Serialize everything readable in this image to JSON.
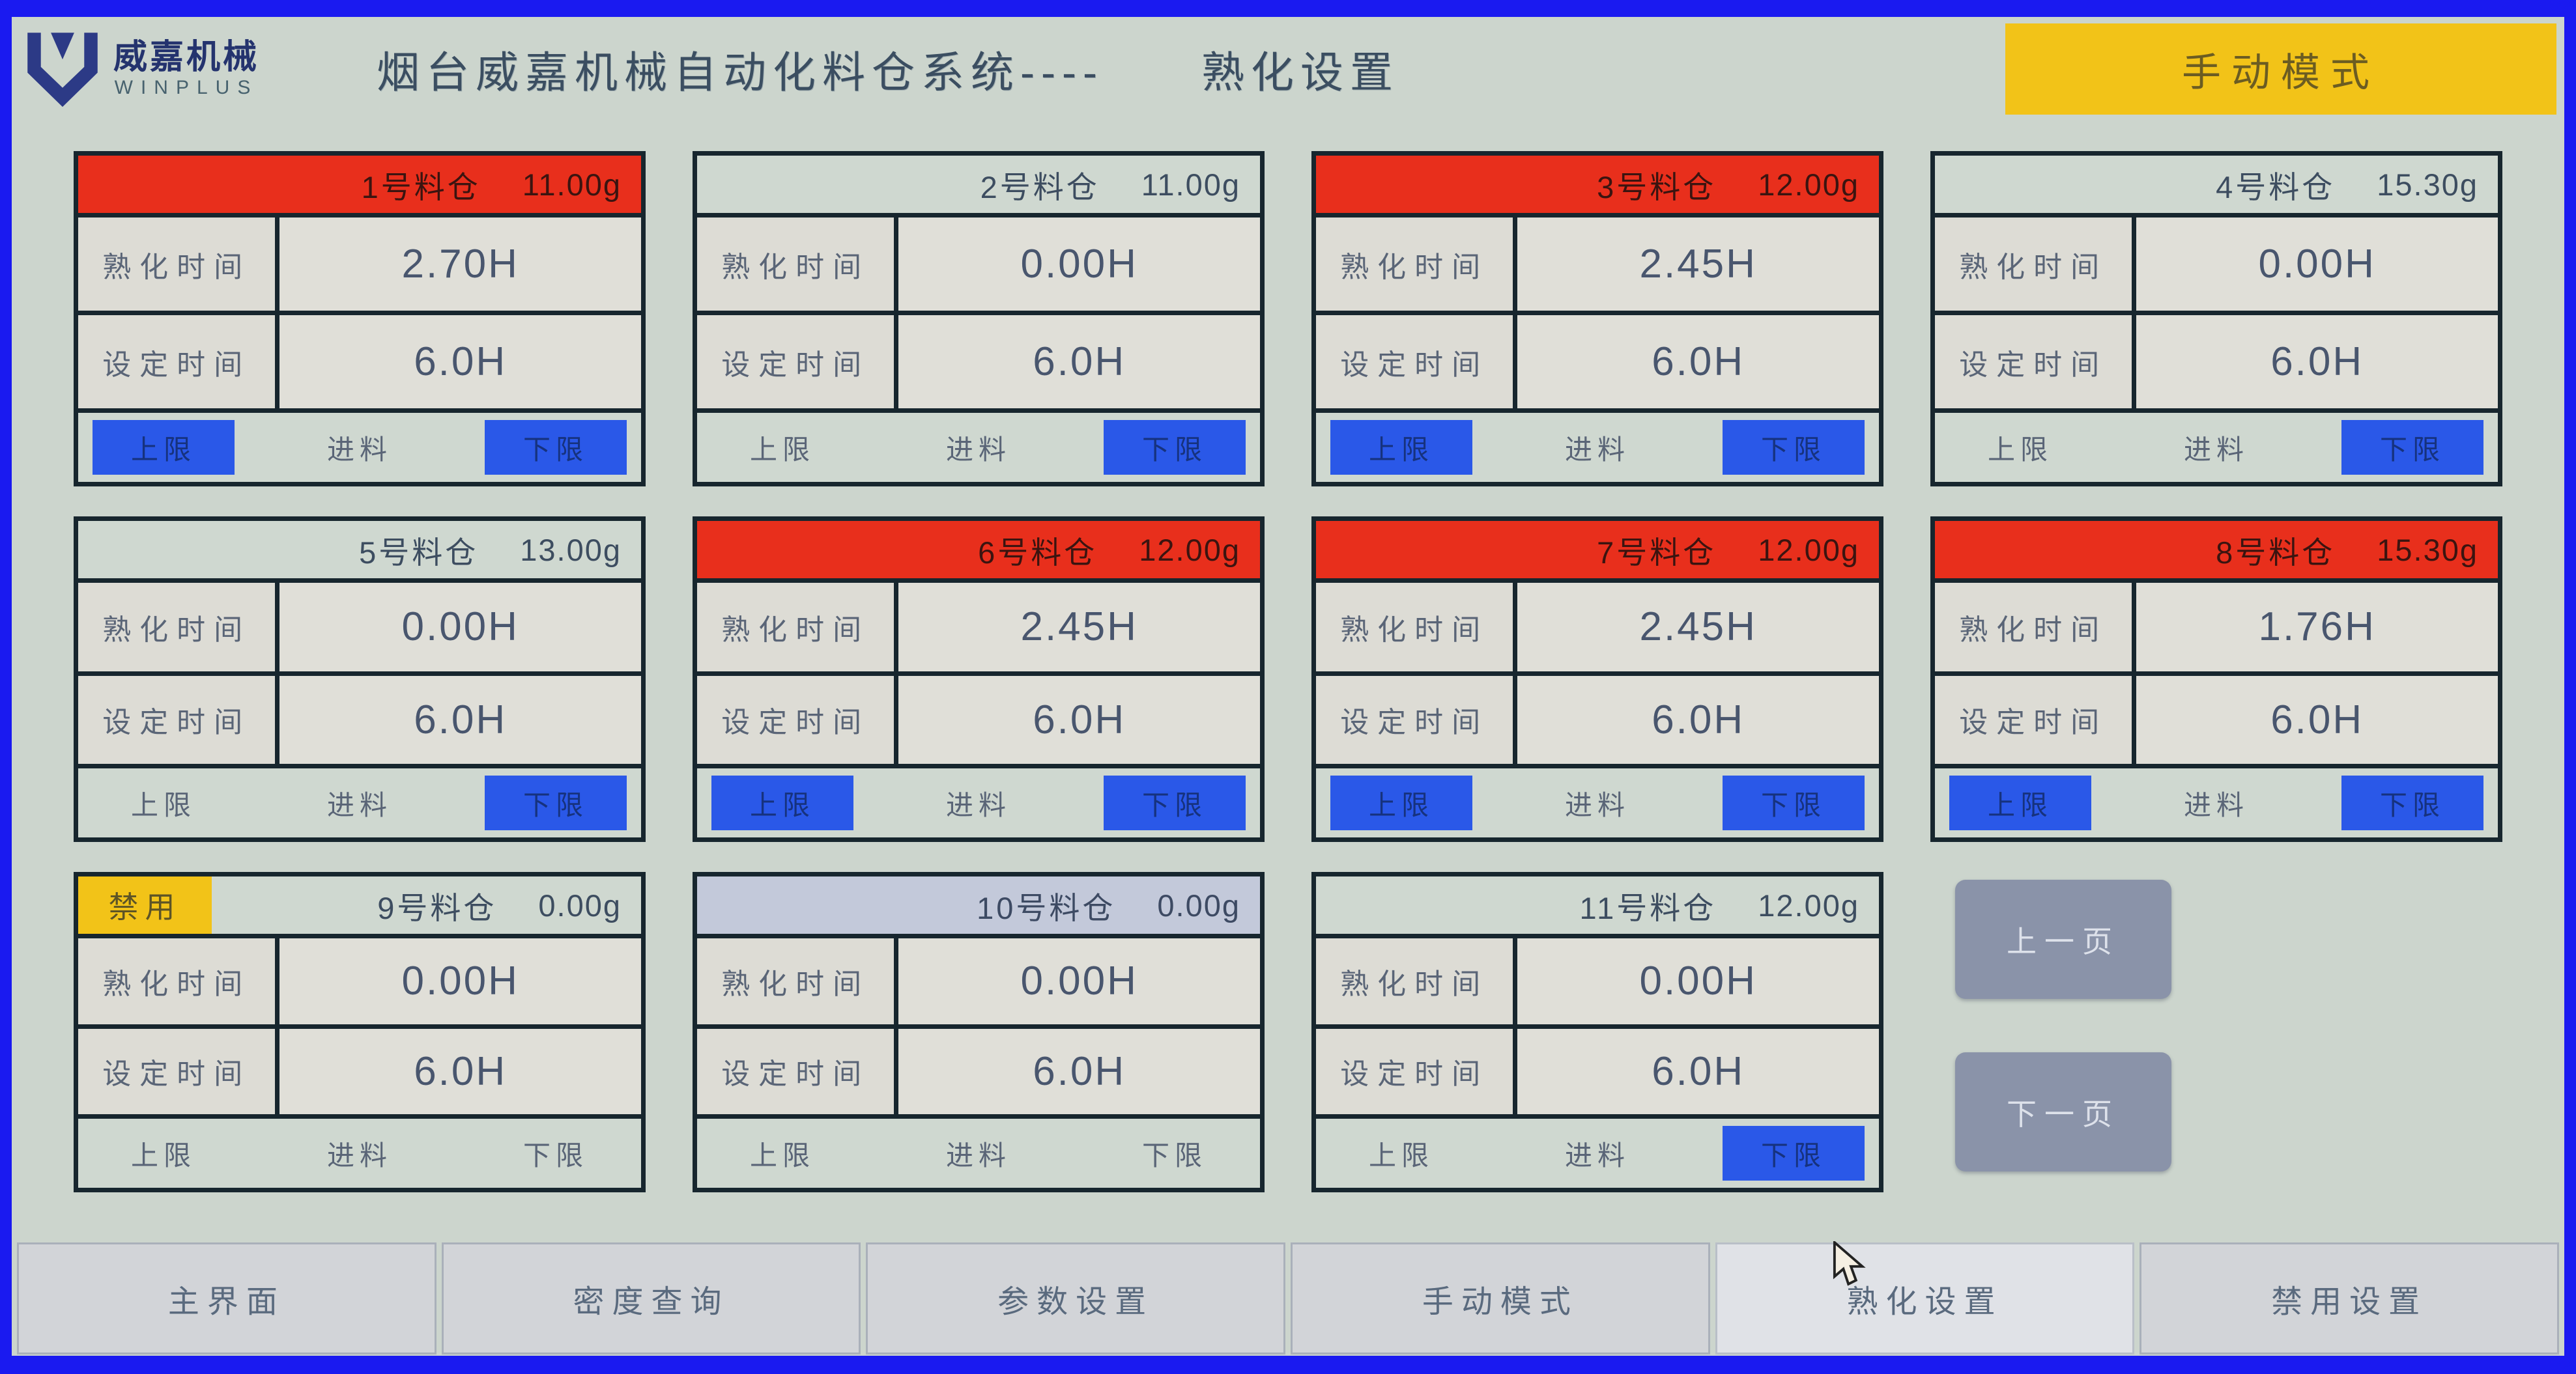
{
  "header": {
    "brand": "威嘉机械",
    "brand_sub": "WINPLUS",
    "title": "烟台威嘉机械自动化料仓系统----",
    "page_title": "熟化设置",
    "mode_badge": "手动模式"
  },
  "labels": {
    "curing_time": "熟化时间",
    "set_time": "设定时间",
    "upper_limit": "上限",
    "feed": "进料",
    "lower_limit": "下限",
    "disabled": "禁用"
  },
  "silos": [
    {
      "name": "1号料仓",
      "weight": "11.00g",
      "curing": "2.70H",
      "set": "6.0H",
      "state": "red",
      "disabled": false,
      "upper": true,
      "feed": false,
      "lower": true
    },
    {
      "name": "2号料仓",
      "weight": "11.00g",
      "curing": "0.00H",
      "set": "6.0H",
      "state": "plain",
      "disabled": false,
      "upper": false,
      "feed": false,
      "lower": true
    },
    {
      "name": "3号料仓",
      "weight": "12.00g",
      "curing": "2.45H",
      "set": "6.0H",
      "state": "red",
      "disabled": false,
      "upper": true,
      "feed": false,
      "lower": true
    },
    {
      "name": "4号料仓",
      "weight": "15.30g",
      "curing": "0.00H",
      "set": "6.0H",
      "state": "plain",
      "disabled": false,
      "upper": false,
      "feed": false,
      "lower": true
    },
    {
      "name": "5号料仓",
      "weight": "13.00g",
      "curing": "0.00H",
      "set": "6.0H",
      "state": "plain",
      "disabled": false,
      "upper": false,
      "feed": false,
      "lower": true
    },
    {
      "name": "6号料仓",
      "weight": "12.00g",
      "curing": "2.45H",
      "set": "6.0H",
      "state": "red",
      "disabled": false,
      "upper": true,
      "feed": false,
      "lower": true
    },
    {
      "name": "7号料仓",
      "weight": "12.00g",
      "curing": "2.45H",
      "set": "6.0H",
      "state": "red",
      "disabled": false,
      "upper": true,
      "feed": false,
      "lower": true
    },
    {
      "name": "8号料仓",
      "weight": "15.30g",
      "curing": "1.76H",
      "set": "6.0H",
      "state": "red",
      "disabled": false,
      "upper": true,
      "feed": false,
      "lower": true
    },
    {
      "name": "9号料仓",
      "weight": "0.00g",
      "curing": "0.00H",
      "set": "6.0H",
      "state": "plain",
      "disabled": true,
      "upper": false,
      "feed": false,
      "lower": false
    },
    {
      "name": "10号料仓",
      "weight": "0.00g",
      "curing": "0.00H",
      "set": "6.0H",
      "state": "blue",
      "disabled": false,
      "upper": false,
      "feed": false,
      "lower": false
    },
    {
      "name": "11号料仓",
      "weight": "12.00g",
      "curing": "0.00H",
      "set": "6.0H",
      "state": "plain",
      "disabled": false,
      "upper": false,
      "feed": false,
      "lower": true
    }
  ],
  "pager": {
    "prev": "上一页",
    "next": "下一页"
  },
  "nav": [
    {
      "label": "主界面",
      "active": false
    },
    {
      "label": "密度查询",
      "active": false
    },
    {
      "label": "参数设置",
      "active": false
    },
    {
      "label": "手动模式",
      "active": false
    },
    {
      "label": "熟化设置",
      "active": true
    },
    {
      "label": "禁用设置",
      "active": false
    }
  ],
  "colors": {
    "frame_blue": "#1a1af0",
    "screen_bg": "#ccd5cd",
    "header_red": "#e82f1c",
    "header_blue_gray": "#c3c9da",
    "indicator_blue": "#2a58e8",
    "disabled_yellow": "#f2c318",
    "pager_gray": "#8a93a9"
  }
}
